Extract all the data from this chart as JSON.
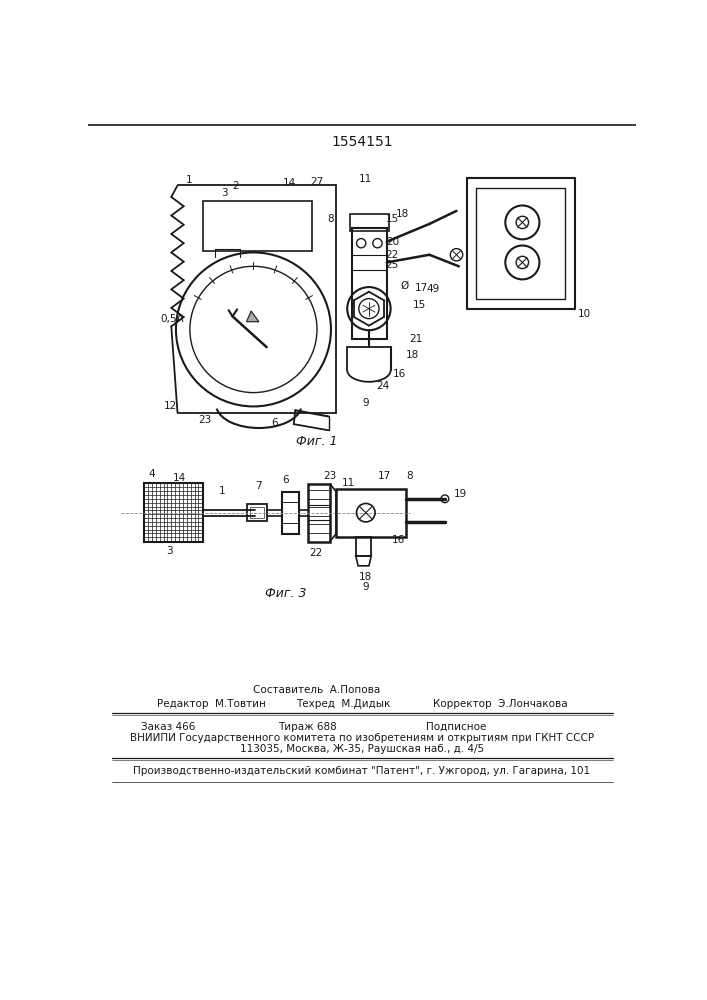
{
  "patent_number": "1554151",
  "background_color": "#ffffff",
  "line_color": "#1a1a1a",
  "fig_width": 7.07,
  "fig_height": 10.0,
  "fig1_caption": "Фиг. 1",
  "fig3_caption": "Фиг. 3"
}
